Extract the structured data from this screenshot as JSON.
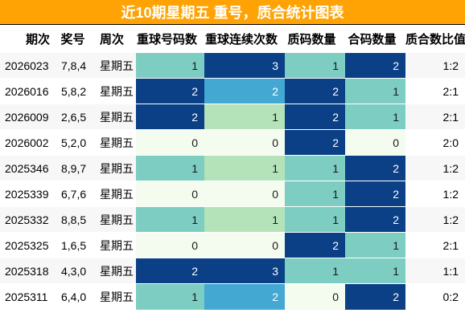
{
  "title": "近10期星期五 重号，质合统计图表",
  "headers": [
    "期次",
    "奖号",
    "周次",
    "重球号码数",
    "重球连续次数",
    "质码数量",
    "合码数量",
    "质合数比值"
  ],
  "rows": [
    {
      "period": "2026023",
      "award": "7,8,4",
      "week": "星期五",
      "repeat": "1",
      "consecutive": "3",
      "prime": "1",
      "composite": "2",
      "ratio": "1:2"
    },
    {
      "period": "2026016",
      "award": "5,8,2",
      "week": "星期五",
      "repeat": "2",
      "consecutive": "2",
      "prime": "2",
      "composite": "1",
      "ratio": "2:1"
    },
    {
      "period": "2026009",
      "award": "2,6,5",
      "week": "星期五",
      "repeat": "2",
      "consecutive": "1",
      "prime": "2",
      "composite": "1",
      "ratio": "2:1"
    },
    {
      "period": "2026002",
      "award": "5,2,0",
      "week": "星期五",
      "repeat": "0",
      "consecutive": "0",
      "prime": "2",
      "composite": "0",
      "ratio": "2:0"
    },
    {
      "period": "2025346",
      "award": "8,9,7",
      "week": "星期五",
      "repeat": "1",
      "consecutive": "1",
      "prime": "1",
      "composite": "2",
      "ratio": "1:2"
    },
    {
      "period": "2025339",
      "award": "6,7,6",
      "week": "星期五",
      "repeat": "0",
      "consecutive": "0",
      "prime": "1",
      "composite": "2",
      "ratio": "1:2"
    },
    {
      "period": "2025332",
      "award": "8,8,5",
      "week": "星期五",
      "repeat": "1",
      "consecutive": "1",
      "prime": "1",
      "composite": "2",
      "ratio": "1:2"
    },
    {
      "period": "2025325",
      "award": "1,6,5",
      "week": "星期五",
      "repeat": "0",
      "consecutive": "0",
      "prime": "2",
      "composite": "1",
      "ratio": "2:1"
    },
    {
      "period": "2025318",
      "award": "4,3,0",
      "week": "星期五",
      "repeat": "2",
      "consecutive": "3",
      "prime": "1",
      "composite": "1",
      "ratio": "1:1"
    },
    {
      "period": "2025311",
      "award": "6,4,0",
      "week": "星期五",
      "repeat": "1",
      "consecutive": "2",
      "prime": "0",
      "composite": "2",
      "ratio": "0:2"
    }
  ],
  "colors": {
    "title_bg": "#ffa305",
    "dark": "#0b3f86",
    "teal": "#7dcdc2",
    "blue": "#43a8d2",
    "green": "#b4e3ba",
    "pale": "#f4fbef"
  }
}
